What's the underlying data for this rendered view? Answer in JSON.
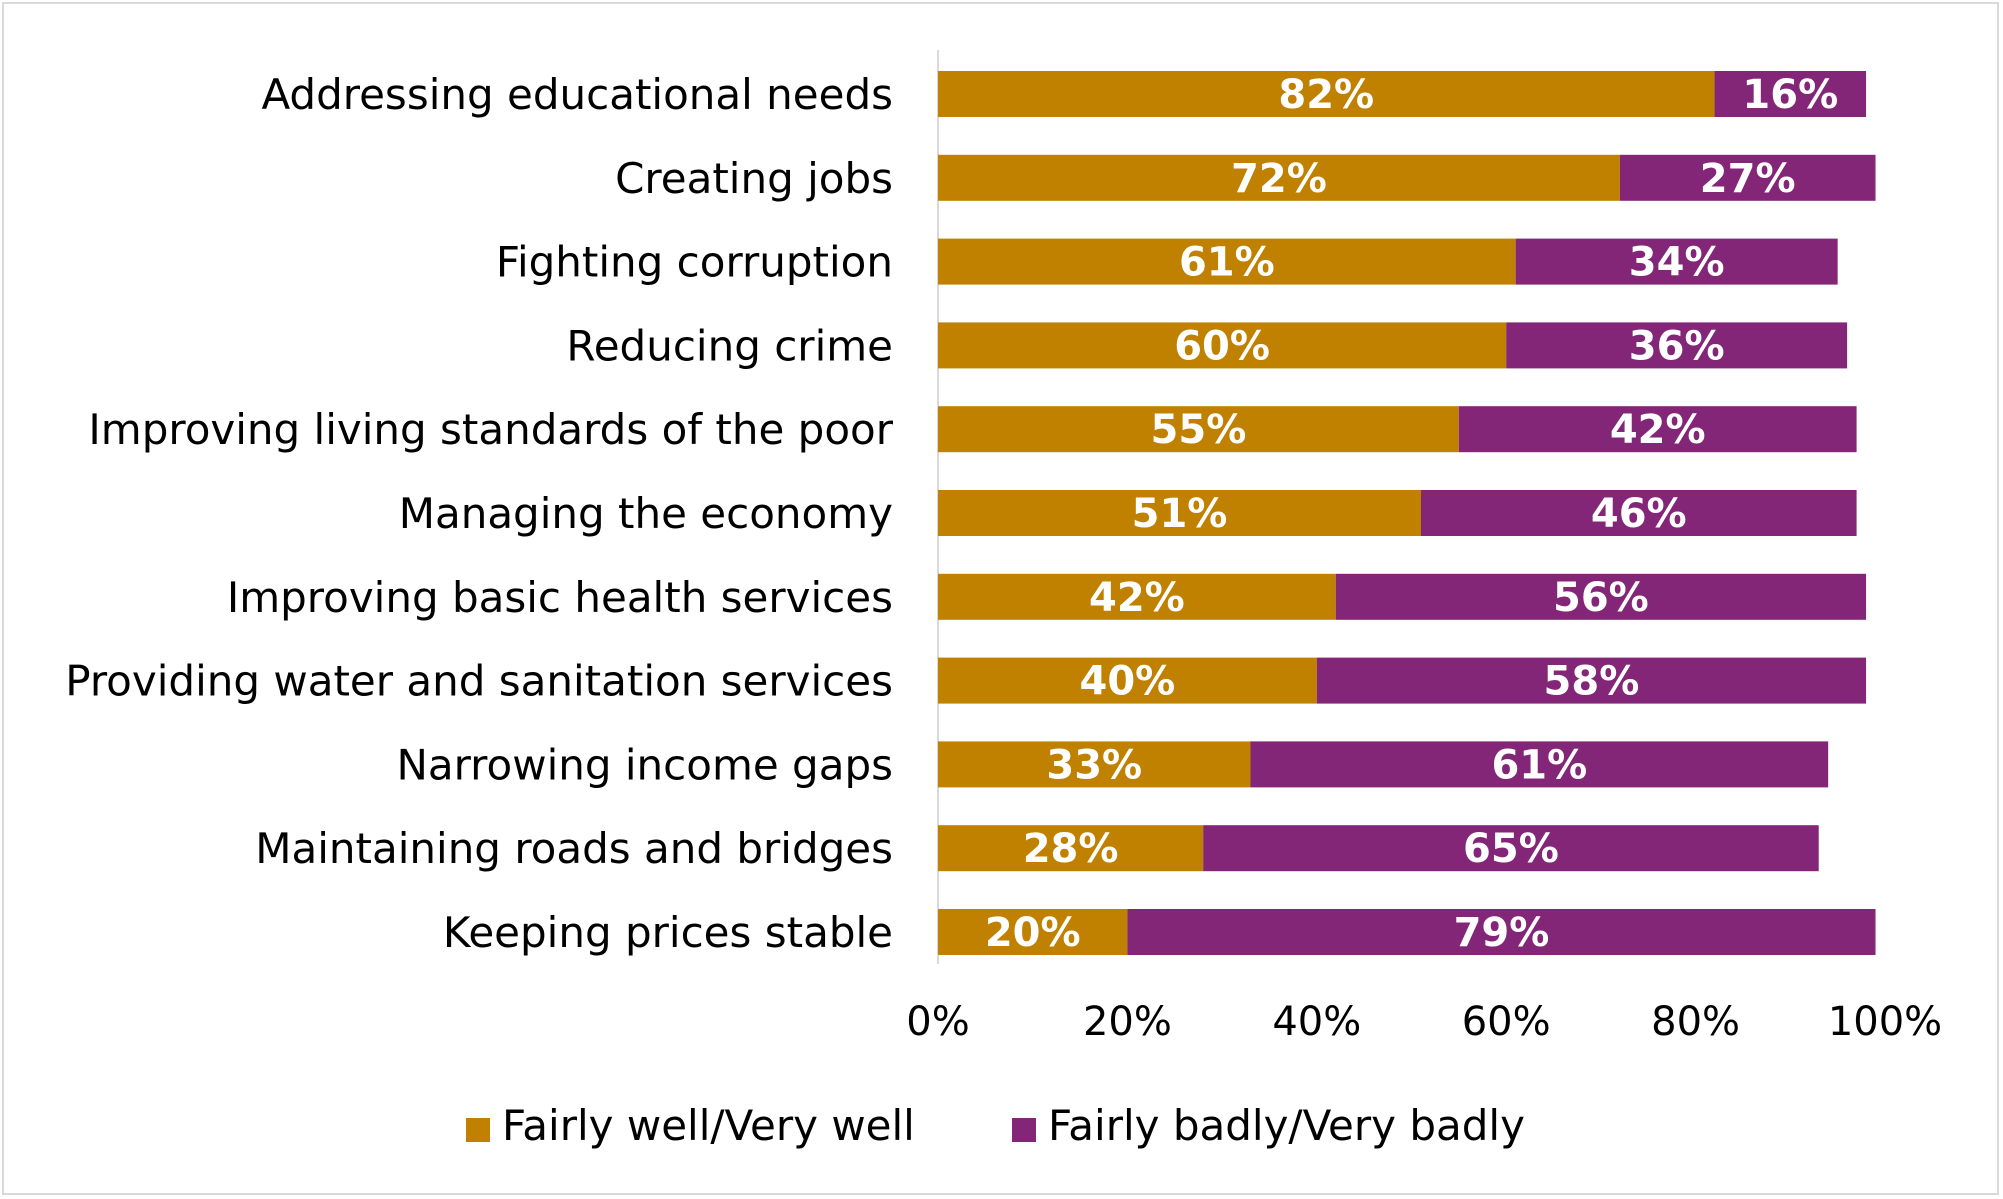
{
  "chart_data": {
    "type": "bar",
    "orientation": "horizontal",
    "stacked": true,
    "title": "",
    "xlabel": "",
    "ylabel": "",
    "xlim": [
      0,
      100
    ],
    "x_ticks": [
      "0%",
      "20%",
      "40%",
      "60%",
      "80%",
      "100%"
    ],
    "categories": [
      "Addressing educational needs",
      "Creating jobs",
      "Fighting corruption",
      "Reducing crime",
      "Improving living standards of the poor",
      "Managing the economy",
      "Improving basic health services",
      "Providing water and sanitation services",
      "Narrowing income gaps",
      "Maintaining roads and bridges",
      "Keeping prices stable"
    ],
    "series": [
      {
        "name": "Fairly well/Very well",
        "color": "#C08000",
        "values": [
          82,
          72,
          61,
          60,
          55,
          51,
          42,
          40,
          33,
          28,
          20
        ]
      },
      {
        "name": "Fairly badly/Very badly",
        "color": "#832677",
        "values": [
          16,
          27,
          34,
          36,
          42,
          46,
          56,
          58,
          61,
          65,
          79
        ]
      }
    ],
    "legend_position": "bottom",
    "grid": false
  }
}
